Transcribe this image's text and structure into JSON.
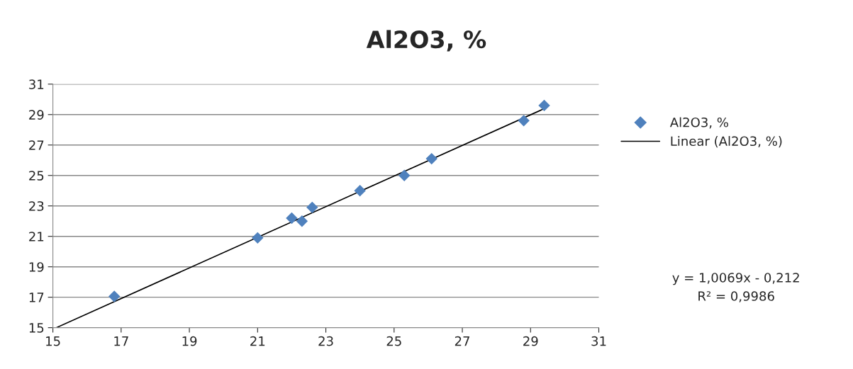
{
  "chart_data": {
    "type": "scatter",
    "title": "Al2O3, %",
    "xlim": [
      15,
      31
    ],
    "ylim": [
      15,
      31
    ],
    "xticks": [
      15,
      17,
      19,
      21,
      23,
      25,
      27,
      29,
      31
    ],
    "yticks": [
      15,
      17,
      19,
      21,
      23,
      25,
      27,
      29,
      31
    ],
    "grid": "y",
    "legend": "right",
    "series": [
      {
        "name": "Al2O3, %",
        "color": "#4f81bd",
        "marker": "diamond",
        "x": [
          16.8,
          21.0,
          22.0,
          22.3,
          22.6,
          24.0,
          25.3,
          26.1,
          28.8,
          29.4
        ],
        "values": [
          17.05,
          20.9,
          22.2,
          22.0,
          22.9,
          24.0,
          25.0,
          26.1,
          28.6,
          29.6
        ]
      },
      {
        "name": "Linear (Al2O3, %)",
        "type": "line",
        "color": "#000000",
        "line_style": "solid",
        "marker": "none",
        "x": [
          15.1,
          29.37
        ],
        "values": [
          15.0,
          29.36
        ]
      }
    ],
    "annotations": [
      "y = 1,0069x - 0,212",
      "R² = 0,9986"
    ]
  }
}
